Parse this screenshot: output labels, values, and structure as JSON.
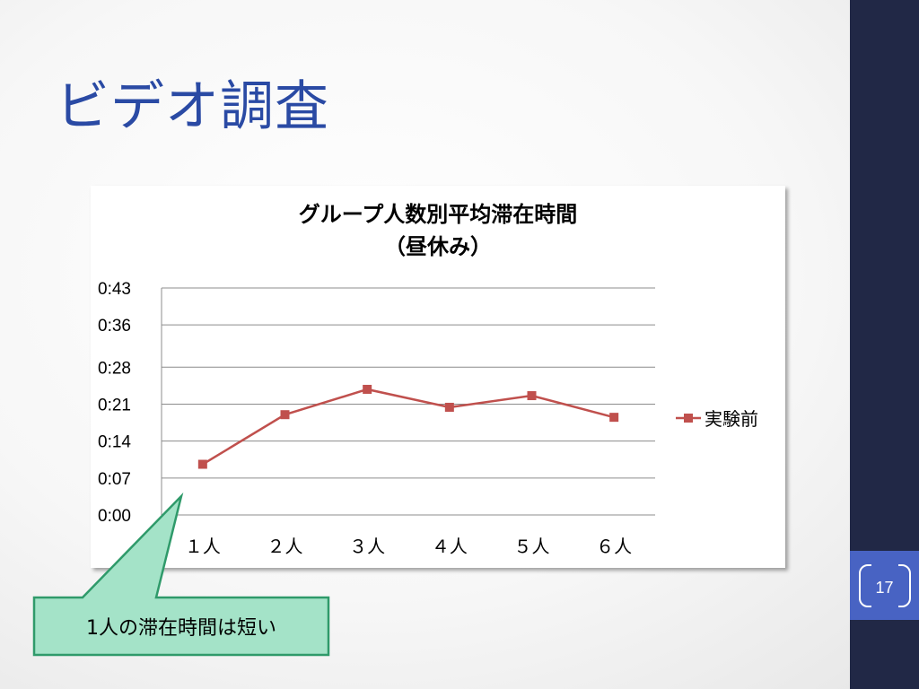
{
  "slide": {
    "title": "ビデオ調査",
    "page_number": "17"
  },
  "callout": {
    "text": "1人の滞在時間は短い",
    "fill_color": "#a4e3c8",
    "border_color": "#2f9a6a"
  },
  "colors": {
    "sidebar": "#212846",
    "page_number_box": "#4863c3",
    "title": "#2a4aa4",
    "series_line": "#c0504d"
  },
  "chart_data": {
    "type": "line",
    "title": "グループ人数別平均滞在時間",
    "subtitle": "（昼休み）",
    "categories": [
      "１人",
      "２人",
      "３人",
      "４人",
      "５人",
      "６人"
    ],
    "y_tick_labels": [
      "0:00",
      "0:07",
      "0:14",
      "0:21",
      "0:28",
      "0:36",
      "0:43"
    ],
    "y_unit": "minutes",
    "ylim": [
      0,
      43
    ],
    "y_ticks": [
      0,
      7,
      14,
      21,
      28,
      36,
      43
    ],
    "grid": true,
    "legend_position": "right",
    "series": [
      {
        "name": "実験前",
        "color": "#c0504d",
        "marker": "square",
        "values": [
          9.6,
          19.0,
          23.8,
          20.4,
          22.6,
          18.5
        ]
      }
    ]
  }
}
